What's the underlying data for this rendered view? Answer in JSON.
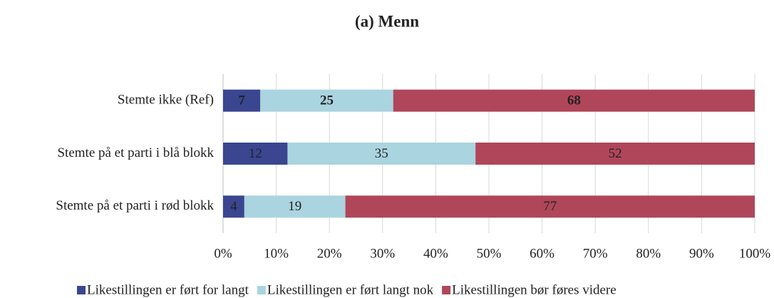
{
  "chart_data": {
    "type": "bar",
    "orientation": "horizontal",
    "stacked": "percent",
    "title": "(a) Menn",
    "categories": [
      "Stemte ikke (Ref)",
      "Stemte på et parti i blå blokk",
      "Stemte på et parti i rød blokk"
    ],
    "series": [
      {
        "name": "Likestillingen er ført for langt",
        "color": "#3a4690",
        "values": [
          7,
          12,
          4
        ]
      },
      {
        "name": "Likestillingen er ført langt nok",
        "color": "#a9d4e0",
        "values": [
          25,
          35,
          19
        ]
      },
      {
        "name": "Likestillingen bør føres videre",
        "color": "#b0465a",
        "values": [
          68,
          52,
          77
        ]
      }
    ],
    "bold_label_categories": [
      true,
      false,
      false
    ],
    "xlim": [
      0,
      100
    ],
    "xticks": [
      {
        "value": 0,
        "label": "0%"
      },
      {
        "value": 10,
        "label": "10%"
      },
      {
        "value": 20,
        "label": "20%"
      },
      {
        "value": 30,
        "label": "30%"
      },
      {
        "value": 40,
        "label": "40%"
      },
      {
        "value": 50,
        "label": "50%"
      },
      {
        "value": 60,
        "label": "60%"
      },
      {
        "value": 70,
        "label": "70%"
      },
      {
        "value": 80,
        "label": "80%"
      },
      {
        "value": 90,
        "label": "90%"
      },
      {
        "value": 100,
        "label": "100%"
      }
    ],
    "grid": true,
    "legend": "bottom"
  }
}
